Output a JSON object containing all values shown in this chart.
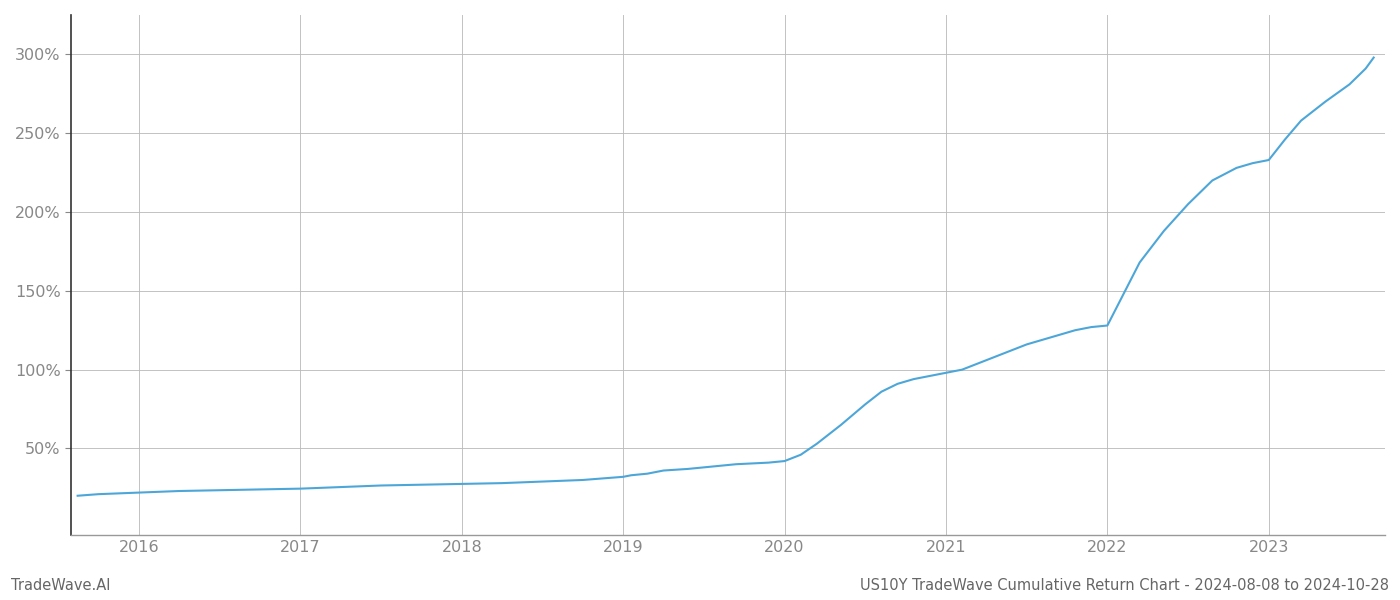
{
  "title": "US10Y TradeWave Cumulative Return Chart - 2024-08-08 to 2024-10-28",
  "watermark": "TradeWave.AI",
  "line_color": "#4da6d8",
  "background_color": "#ffffff",
  "grid_color": "#bbbbbb",
  "x_years": [
    2016,
    2017,
    2018,
    2019,
    2020,
    2021,
    2022,
    2023
  ],
  "x_data": [
    2015.62,
    2015.75,
    2016.0,
    2016.25,
    2016.5,
    2016.75,
    2017.0,
    2017.25,
    2017.5,
    2017.75,
    2018.0,
    2018.25,
    2018.5,
    2018.75,
    2019.0,
    2019.05,
    2019.15,
    2019.25,
    2019.4,
    2019.5,
    2019.6,
    2019.7,
    2019.8,
    2019.9,
    2020.0,
    2020.1,
    2020.2,
    2020.35,
    2020.5,
    2020.6,
    2020.7,
    2020.8,
    2020.9,
    2021.0,
    2021.1,
    2021.2,
    2021.3,
    2021.4,
    2021.5,
    2021.6,
    2021.7,
    2021.8,
    2021.9,
    2022.0,
    2022.1,
    2022.2,
    2022.35,
    2022.5,
    2022.65,
    2022.8,
    2022.9,
    2023.0,
    2023.1,
    2023.2,
    2023.35,
    2023.5,
    2023.6,
    2023.65
  ],
  "y_data": [
    20,
    21,
    22,
    23,
    23.5,
    24,
    24.5,
    25.5,
    26.5,
    27,
    27.5,
    28,
    29,
    30,
    32,
    33,
    34,
    36,
    37,
    38,
    39,
    40,
    40.5,
    41,
    42,
    46,
    53,
    65,
    78,
    86,
    91,
    94,
    96,
    98,
    100,
    104,
    108,
    112,
    116,
    119,
    122,
    125,
    127,
    128,
    148,
    168,
    188,
    205,
    220,
    228,
    231,
    233,
    246,
    258,
    270,
    281,
    291,
    298
  ],
  "ylim": [
    -5,
    325
  ],
  "xlim": [
    2015.58,
    2023.72
  ],
  "yticks": [
    50,
    100,
    150,
    200,
    250,
    300
  ],
  "ytick_labels": [
    "50%",
    "100%",
    "150%",
    "200%",
    "250%",
    "300%"
  ],
  "line_width": 1.5,
  "title_fontsize": 10.5,
  "watermark_fontsize": 10.5,
  "tick_fontsize": 11.5,
  "title_color": "#666666",
  "watermark_color": "#666666",
  "tick_color": "#888888",
  "left_spine_color": "#333333"
}
